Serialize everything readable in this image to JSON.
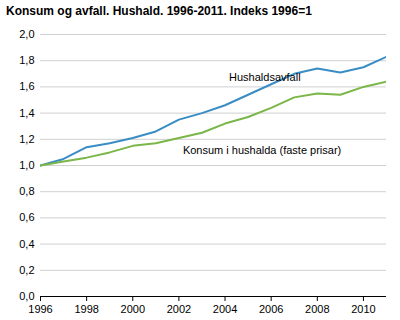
{
  "chart_data": {
    "type": "line",
    "title": "Konsum og avfall. Hushald. 1996-2011. Indeks 1996=1",
    "x": [
      1996,
      1997,
      1998,
      1999,
      2000,
      2001,
      2002,
      2003,
      2004,
      2005,
      2006,
      2007,
      2008,
      2009,
      2010,
      2011
    ],
    "series": [
      {
        "name": "Hushaldsavfall",
        "color": "#3a8cc4",
        "values": [
          1.0,
          1.05,
          1.14,
          1.17,
          1.21,
          1.26,
          1.35,
          1.4,
          1.46,
          1.54,
          1.62,
          1.7,
          1.74,
          1.71,
          1.75,
          1.83
        ]
      },
      {
        "name": "Konsum i hushalda (faste prisar)",
        "color": "#7ab648",
        "values": [
          1.0,
          1.03,
          1.06,
          1.1,
          1.15,
          1.17,
          1.21,
          1.25,
          1.32,
          1.37,
          1.44,
          1.52,
          1.55,
          1.54,
          1.6,
          1.64
        ]
      }
    ],
    "xlim": [
      1996,
      2011
    ],
    "xticks": [
      1996,
      1998,
      2000,
      2002,
      2004,
      2006,
      2008,
      2010
    ],
    "ylim": [
      0,
      2
    ],
    "yticks": [
      {
        "value": 0,
        "label": "0,0"
      },
      {
        "value": 0.2,
        "label": "0,2"
      },
      {
        "value": 0.4,
        "label": "0,4"
      },
      {
        "value": 0.6,
        "label": "0,6"
      },
      {
        "value": 0.8,
        "label": "0,8"
      },
      {
        "value": 1,
        "label": "1,0"
      },
      {
        "value": 1.2,
        "label": "1,2"
      },
      {
        "value": 1.4,
        "label": "1,4"
      },
      {
        "value": 1.6,
        "label": "1,6"
      },
      {
        "value": 1.8,
        "label": "1,8"
      },
      {
        "value": 2,
        "label": "2,0"
      }
    ],
    "grid": true
  }
}
